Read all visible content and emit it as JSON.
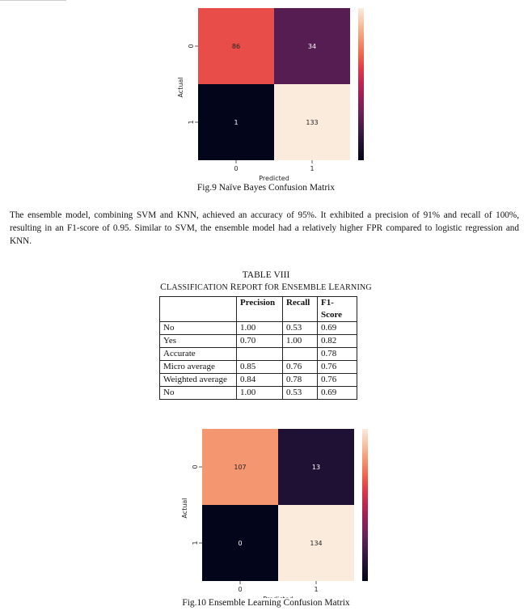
{
  "figure1": {
    "caption": "Fig.9 Naïve Bayes Confusion Matrix",
    "chart_data": {
      "type": "heatmap",
      "xlabel": "Predicted",
      "ylabel": "Actual",
      "x_ticks": [
        "0",
        "1"
      ],
      "y_ticks": [
        "0",
        "1"
      ],
      "values": [
        [
          86,
          34
        ],
        [
          1,
          133
        ]
      ],
      "colorbar_ticks": [
        "20",
        "40",
        "60",
        "80",
        "100",
        "120"
      ],
      "colorbar_range": [
        1,
        133
      ]
    }
  },
  "paragraph": "The ensemble model, combining SVM and KNN, achieved an accuracy of 95%. It exhibited a precision of 91% and recall of 100%, resulting in an F1-score of 0.95. Similar to SVM, the ensemble model had a relatively higher FPR compared to logistic regression and KNN.",
  "table": {
    "number": "TABLE VIII",
    "title": "Classification Report for Ensemble Learning",
    "headers": [
      "",
      "Precision",
      "Recall",
      "F1-Score"
    ],
    "rows": [
      [
        "No",
        "1.00",
        "0.53",
        "0.69"
      ],
      [
        "Yes",
        "0.70",
        "1.00",
        "0.82"
      ],
      [
        "Accurate",
        "",
        "",
        "0.78"
      ],
      [
        "Micro average",
        "0.85",
        "0.76",
        "0.76"
      ],
      [
        "Weighted average",
        "0.84",
        "0.78",
        "0.76"
      ],
      [
        "No",
        "1.00",
        "0.53",
        "0.69"
      ]
    ]
  },
  "figure2": {
    "caption": "Fig.10 Ensemble Learning Confusion Matrix",
    "chart_data": {
      "type": "heatmap",
      "xlabel": "Predicted",
      "ylabel": "Actual",
      "x_ticks": [
        "0",
        "1"
      ],
      "y_ticks": [
        "0",
        "1"
      ],
      "values": [
        [
          107,
          13
        ],
        [
          0,
          134
        ]
      ],
      "colorbar_ticks": [
        "0",
        "20",
        "40",
        "60",
        "80",
        "100",
        "120"
      ],
      "colorbar_range": [
        0,
        134
      ]
    }
  }
}
